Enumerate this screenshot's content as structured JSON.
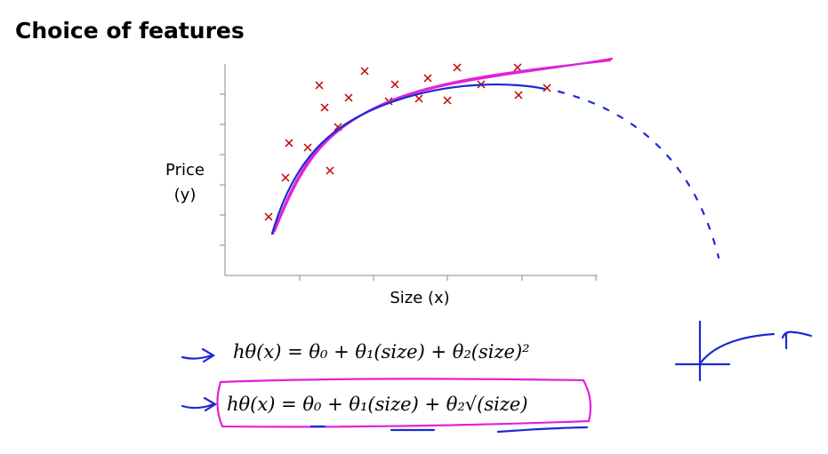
{
  "slide": {
    "title": "Choice of features",
    "y_label": [
      "Price",
      "(y)"
    ],
    "x_label": "Size (x)",
    "formulas": [
      "hθ(x) = θ₀ + θ₁(size) + θ₂(size)²",
      "hθ(x) = θ₀ + θ₁(size) + θ₂√(size)"
    ]
  }
}
